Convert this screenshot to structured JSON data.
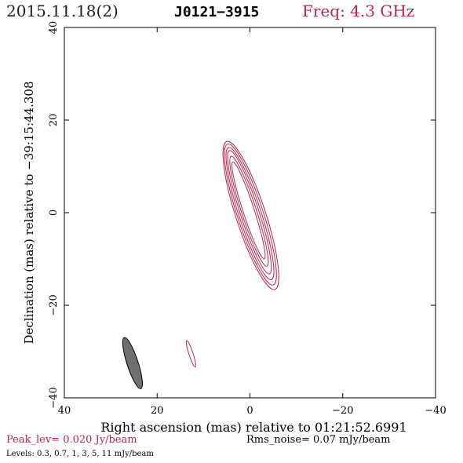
{
  "header": {
    "date": "2015.11.18(2)",
    "source": "J0121−3915",
    "freq": "Freq: 4.3 GHz"
  },
  "chart_data": {
    "type": "contour",
    "xlabel": "Right ascension (mas) relative to 01:21:52.6991",
    "ylabel": "Declination (mas) relative to −39:15:44.308",
    "xlim": [
      40,
      -40
    ],
    "ylim": [
      -40,
      40
    ],
    "x_ticks": [
      40,
      20,
      0,
      -20,
      -40
    ],
    "x_tick_labels": [
      "40",
      "20",
      "0",
      "−20",
      "−40"
    ],
    "y_ticks": [
      40,
      20,
      0,
      -20,
      -40
    ],
    "y_tick_labels": [
      "40",
      "20",
      "0",
      "−20",
      "−40"
    ],
    "contours": [
      {
        "cx": 0.3,
        "cy": 0.5,
        "a": 11.0,
        "b": 1.2,
        "angle_deg": -72
      },
      {
        "cx": 0.2,
        "cy": 0.3,
        "a": 12.5,
        "b": 1.6,
        "angle_deg": -72
      },
      {
        "cx": 0.1,
        "cy": 0.1,
        "a": 14.0,
        "b": 2.0,
        "angle_deg": -72
      },
      {
        "cx": 0.0,
        "cy": -0.2,
        "a": 15.0,
        "b": 2.4,
        "angle_deg": -72
      },
      {
        "cx": -0.1,
        "cy": -0.4,
        "a": 16.0,
        "b": 2.8,
        "angle_deg": -72
      },
      {
        "cx": -0.2,
        "cy": -0.6,
        "a": 16.8,
        "b": 3.2,
        "angle_deg": -72
      },
      {
        "cx": 12.7,
        "cy": -30.5,
        "a": 3.0,
        "b": 0.45,
        "angle_deg": -72
      }
    ],
    "beam": {
      "cx": 25.3,
      "cy": -32.5,
      "a": 5.8,
      "b": 1.2,
      "angle_deg": -72
    },
    "contour_color": "#b0284e",
    "beam_fill": "#6f6f6f"
  },
  "footer": {
    "peak": "Peak_lev=  0.020 Jy/beam",
    "rms": "Rms_noise= 0.07 mJy/beam",
    "levels": "Levels: 0.3, 0.7,    1,    3,    5,   11 mJy/beam"
  }
}
